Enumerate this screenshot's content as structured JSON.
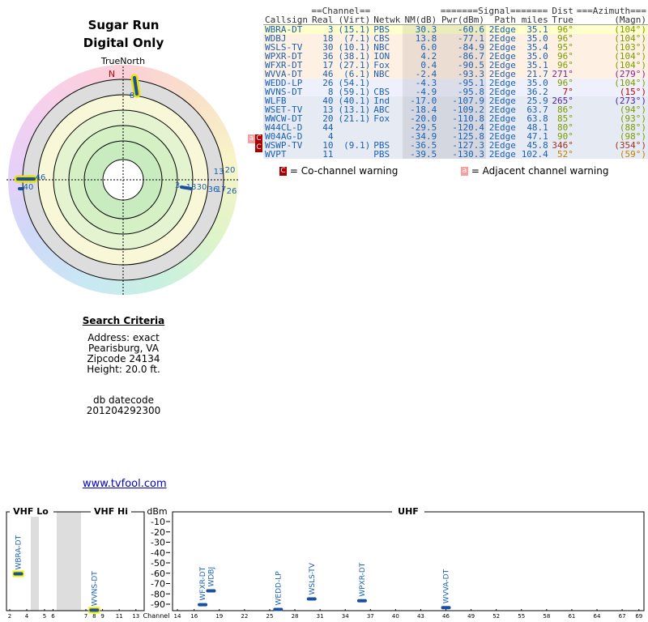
{
  "header": {
    "title": "Sugar Run",
    "subtitle": "Digital Only"
  },
  "polar": {
    "north_label": "TrueNorth",
    "n": "N"
  },
  "table": {
    "group_headers": [
      "==Channel==",
      "=======Signal=======",
      "Dist",
      "===Azimuth==="
    ],
    "columns": [
      "Callsign",
      "Real",
      "(Virt)",
      "Netwk",
      "NM(dB)",
      "Pwr(dBm)",
      "Path",
      "miles",
      "True",
      "(Magn)"
    ],
    "rows": [
      [
        "WBRA-DT",
        3,
        "(15.1)",
        "PBS",
        "30.3",
        -60.6,
        "2Edge",
        "35.1",
        "96°",
        "(104°)"
      ],
      [
        "WDBJ",
        18,
        "(7.1)",
        "CBS",
        "13.8",
        -77.1,
        "2Edge",
        "35.0",
        "96°",
        "(104°)"
      ],
      [
        "WSLS-TV",
        30,
        "(10.1)",
        "NBC",
        "6.0",
        -84.9,
        "2Edge",
        "35.4",
        "95°",
        "(103°)"
      ],
      [
        "WPXR-DT",
        36,
        "(38.1)",
        "ION",
        "4.2",
        -86.7,
        "2Edge",
        "35.0",
        "96°",
        "(104°)"
      ],
      [
        "WFXR-DT",
        17,
        "(27.1)",
        "Fox",
        "0.4",
        -90.5,
        "2Edge",
        "35.1",
        "96°",
        "(104°)"
      ],
      [
        "WVVA-DT",
        46,
        "(6.1)",
        "NBC",
        "-2.4",
        -93.3,
        "2Edge",
        "21.7",
        "271°",
        "(279°)"
      ],
      [
        "WEDD-LP",
        26,
        "(54.1)",
        null,
        "-4.3",
        -95.1,
        "2Edge",
        "35.0",
        "96°",
        "(104°)"
      ],
      [
        "WVNS-DT",
        8,
        "(59.1)",
        "CBS",
        "-4.9",
        -95.8,
        "2Edge",
        "36.2",
        "7°",
        "(15°)"
      ],
      [
        "WLFB",
        40,
        "(40.1)",
        "Ind",
        "-17.0",
        -107.9,
        "2Edge",
        "25.9",
        "265°",
        "(273°)"
      ],
      [
        "WSET-TV",
        13,
        "(13.1)",
        "ABC",
        "-18.4",
        -109.2,
        "2Edge",
        "63.7",
        "86°",
        "(94°)"
      ],
      [
        "WWCW-DT",
        20,
        "(21.1)",
        "Fox",
        "-20.0",
        -110.8,
        "2Edge",
        "63.8",
        "85°",
        "(93°)"
      ],
      [
        "W44CL-D",
        44,
        null,
        null,
        "-29.5",
        -120.4,
        "2Edge",
        "48.1",
        "80°",
        "(88°)"
      ],
      [
        "W04AG-D",
        4,
        null,
        null,
        "-34.9",
        -125.8,
        "2Edge",
        "47.1",
        "90°",
        "(98°)"
      ],
      [
        "WSWP-TV",
        10,
        "(9.1)",
        "PBS",
        "-36.5",
        -127.3,
        "2Edge",
        "45.8",
        "346°",
        "(354°)"
      ],
      [
        "WVPT",
        11,
        null,
        "PBS",
        "-39.5",
        -130.3,
        "2Edge",
        "102.4",
        "52°",
        "(59°)"
      ]
    ]
  },
  "legend": {
    "co_symbol": "C",
    "co_text": "= Co-channel warning",
    "adj_symbol": "a",
    "adj_text": "= Adjacent channel warning"
  },
  "search": {
    "heading": "Search Criteria",
    "lines": [
      "Address: exact",
      "Pearisburg, VA",
      "Zipcode 24134",
      "Height: 20.0 ft."
    ],
    "datecode_label": "db datecode",
    "datecode": "201204292300"
  },
  "link": "www.tvfool.com",
  "spectrum": {
    "bands": [
      "VHF Lo",
      "VHF Hi",
      "UHF"
    ],
    "unit": "dBm",
    "dbm_ticks": [
      -10,
      -20,
      -30,
      -40,
      -50,
      -60,
      -70,
      -80,
      -90
    ],
    "channel_label": "Channel",
    "vhf_ticks": [
      2,
      4,
      5,
      6,
      7,
      8,
      9,
      11,
      13
    ],
    "uhf_ticks": [
      14,
      16,
      19,
      22,
      25,
      28,
      31,
      34,
      37,
      40,
      43,
      46,
      49,
      52,
      55,
      58,
      61,
      64,
      67,
      69
    ]
  }
}
